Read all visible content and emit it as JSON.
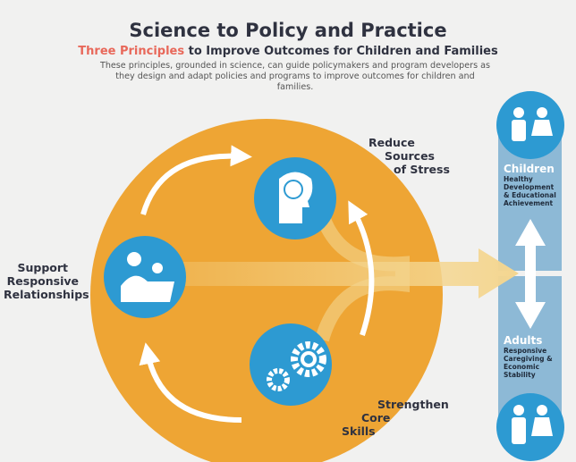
{
  "header": {
    "title": "Science to Policy and Practice",
    "subtitle_highlight": "Three Principles",
    "subtitle_rest": " to Improve Outcomes for Children and Families",
    "description": "These principles, grounded in science, can guide policymakers and program developers as they design and adapt policies and programs to improve outcomes for children and families."
  },
  "principles": [
    {
      "label_lines": [
        "Reduce",
        "Sources",
        "of Stress"
      ],
      "icon": "head-stress-icon"
    },
    {
      "label_lines": [
        "Support",
        "Responsive",
        "Relationships"
      ],
      "icon": "reading-together-icon"
    },
    {
      "label_lines": [
        "Strengthen",
        "Core",
        "Skills"
      ],
      "icon": "gears-icon"
    }
  ],
  "outcomes": {
    "children": {
      "title": "Children",
      "text_lines": [
        "Healthy",
        "Development",
        "& Educational",
        "Achievement"
      ],
      "icon": "children-icon"
    },
    "adults": {
      "title": "Adults",
      "text_lines": [
        "Responsive",
        "Caregiving &",
        "Economic",
        "Stability"
      ],
      "icon": "adults-icon"
    }
  },
  "colors": {
    "orange": "#eea534",
    "blue": "#2d9ad2",
    "column": "#8db9d6",
    "accent": "#e8685a",
    "pale_arrow": "#f4d690"
  }
}
